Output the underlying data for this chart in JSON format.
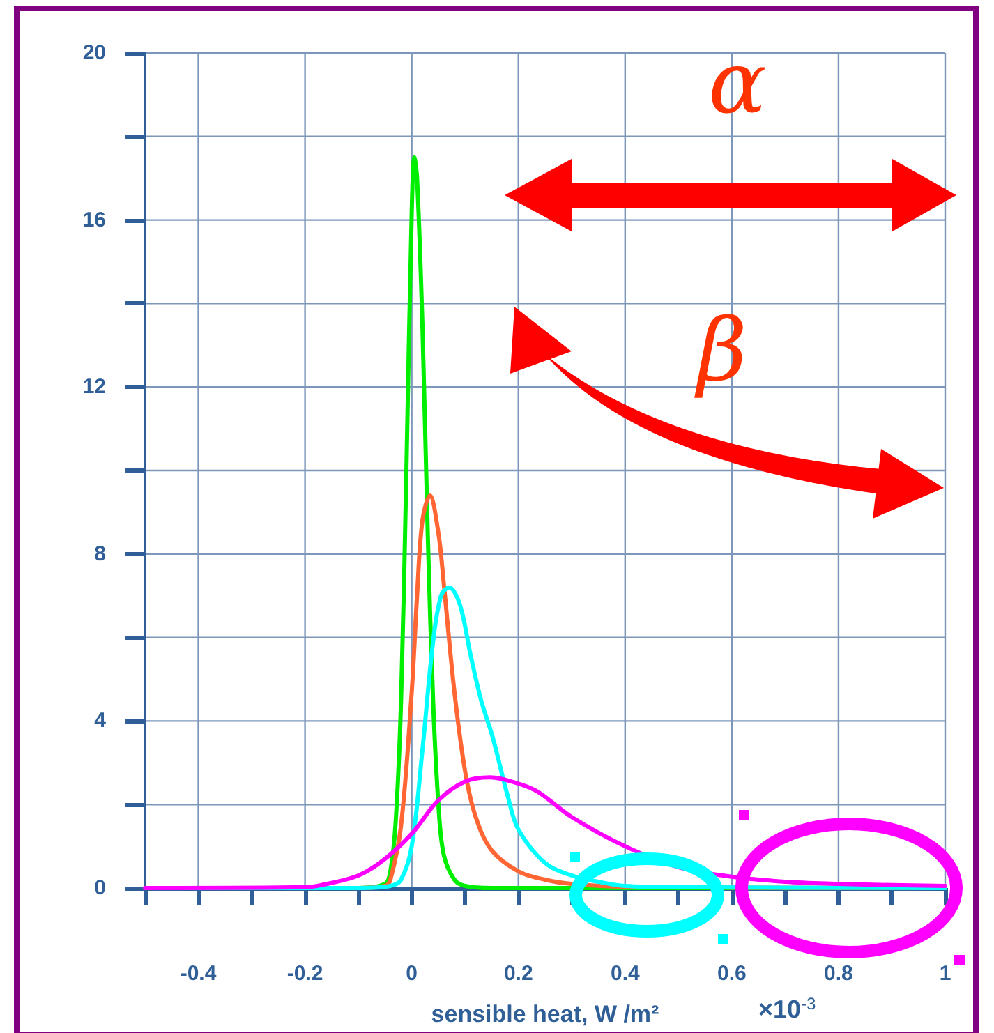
{
  "chart_data": {
    "type": "line",
    "xlabel": "sensible heat, W /m²",
    "annotations": [
      "α",
      "β",
      "×10$^{-3}$"
    ],
    "xlim": [
      -0.5,
      1
    ],
    "ylim": [
      0,
      20
    ],
    "xticks": [
      {
        "value": -0.5,
        "label": null
      },
      -0.4,
      {
        "value": -0.3,
        "label": null
      },
      -0.2,
      {
        "value": -0.1,
        "label": null
      },
      0,
      {
        "value": 0.1,
        "label": null
      },
      0.2,
      {
        "value": 0.3,
        "label": null
      },
      0.4,
      {
        "value": 0.5,
        "label": null
      },
      0.6,
      {
        "value": 0.7,
        "label": null
      },
      0.8,
      {
        "value": 0.9,
        "label": null
      },
      1
    ],
    "yticks": [
      0,
      {
        "value": 2,
        "label": null
      },
      4,
      {
        "value": 6,
        "label": null
      },
      8,
      {
        "value": 10,
        "label": null
      },
      12,
      {
        "value": 14,
        "label": null
      },
      16,
      {
        "value": 18,
        "label": null
      },
      20
    ],
    "grid": true,
    "marker": "none",
    "line_style": "solid",
    "series": [
      {
        "color": "#00ee00",
        "x": [
          -0.5,
          -0.1,
          -0.05,
          -0.04,
          -0.03,
          -0.02,
          -0.01,
          0,
          0.005,
          0.01,
          0.02,
          0.03,
          0.04,
          0.05,
          0.06,
          0.08,
          0.1,
          0.15,
          0.3,
          1
        ],
        "values": [
          0,
          0,
          0.1,
          0.4,
          1.6,
          4.5,
          10,
          16.2,
          17.5,
          17,
          13.5,
          8.5,
          4.5,
          2,
          0.8,
          0.2,
          0.05,
          0,
          0,
          0
        ]
      },
      {
        "color": "#ff6633",
        "x": [
          -0.5,
          -0.1,
          -0.05,
          -0.04,
          -0.02,
          0,
          0.01,
          0.02,
          0.034,
          0.05,
          0.06,
          0.08,
          0.1,
          0.12,
          0.15,
          0.2,
          0.25,
          0.3,
          0.4,
          1
        ],
        "values": [
          0,
          0,
          0.05,
          0.2,
          1.5,
          4.7,
          7,
          8.8,
          9.4,
          8.5,
          7.3,
          4.7,
          2.8,
          1.7,
          0.9,
          0.4,
          0.2,
          0.1,
          0.03,
          0
        ]
      },
      {
        "color": "#00ffff",
        "x": [
          -0.5,
          -0.1,
          -0.04,
          -0.02,
          0,
          0.02,
          0.04,
          0.055,
          0.07,
          0.09,
          0.11,
          0.13,
          0.152,
          0.18,
          0.2,
          0.25,
          0.3,
          0.35,
          0.4,
          0.5,
          1
        ],
        "values": [
          0,
          0,
          0.05,
          0.2,
          1,
          3.3,
          5.9,
          7,
          7.2,
          6.8,
          5.6,
          4.5,
          3.6,
          2.2,
          1.4,
          0.6,
          0.3,
          0.15,
          0.05,
          0.02,
          0
        ]
      },
      {
        "color": "#ff00ff",
        "x": [
          -0.5,
          -0.2,
          -0.17,
          -0.1,
          -0.05,
          0,
          0.05,
          0.1,
          0.147,
          0.2,
          0.237,
          0.3,
          0.4,
          0.5,
          0.6,
          0.7,
          0.8,
          0.9,
          1
        ],
        "values": [
          0,
          0.02,
          0.07,
          0.3,
          0.7,
          1.3,
          2.1,
          2.55,
          2.65,
          2.5,
          2.3,
          1.7,
          1,
          0.5,
          0.27,
          0.15,
          0.1,
          0.07,
          0.05
        ]
      }
    ]
  }
}
